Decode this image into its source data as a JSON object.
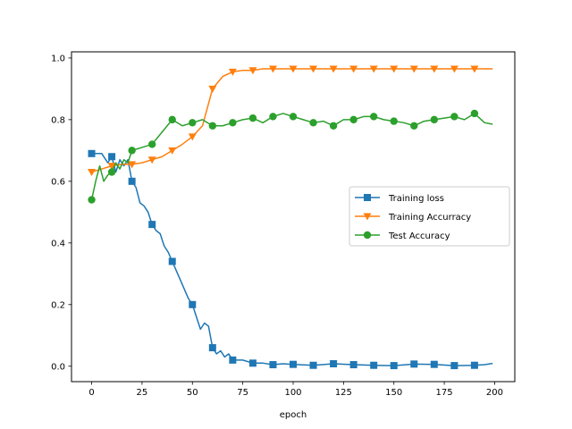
{
  "chart_data": {
    "type": "line",
    "title": "",
    "xlabel": "epoch",
    "ylabel": "",
    "xlim": [
      -10,
      210
    ],
    "ylim": [
      -0.05,
      1.02
    ],
    "x_ticks": [
      0,
      25,
      50,
      75,
      100,
      125,
      150,
      175,
      200
    ],
    "x_tick_labels": [
      "0",
      "25",
      "50",
      "75",
      "100",
      "125",
      "150",
      "175",
      "200"
    ],
    "y_ticks": [
      0.0,
      0.2,
      0.4,
      0.6,
      0.8,
      1.0
    ],
    "y_tick_labels": [
      "0.0",
      "0.2",
      "0.4",
      "0.6",
      "0.8",
      "1.0"
    ],
    "grid": false,
    "legend_position": "center-right",
    "marker_every": 10,
    "series": [
      {
        "name": "Training loss",
        "color": "#1f77b4",
        "marker": "square",
        "x": [
          0,
          5,
          8,
          10,
          12,
          14,
          16,
          18,
          20,
          22,
          24,
          26,
          28,
          30,
          32,
          34,
          36,
          38,
          40,
          42,
          44,
          46,
          48,
          50,
          52,
          54,
          56,
          58,
          60,
          62,
          64,
          66,
          68,
          70,
          75,
          80,
          85,
          90,
          95,
          100,
          110,
          120,
          130,
          140,
          150,
          160,
          170,
          180,
          190,
          195,
          199
        ],
        "values": [
          0.69,
          0.69,
          0.66,
          0.68,
          0.63,
          0.67,
          0.65,
          0.67,
          0.6,
          0.58,
          0.53,
          0.52,
          0.5,
          0.46,
          0.44,
          0.43,
          0.39,
          0.37,
          0.34,
          0.31,
          0.28,
          0.25,
          0.22,
          0.2,
          0.16,
          0.12,
          0.14,
          0.13,
          0.06,
          0.04,
          0.05,
          0.03,
          0.04,
          0.02,
          0.02,
          0.01,
          0.01,
          0.005,
          0.008,
          0.006,
          0.003,
          0.008,
          0.005,
          0.003,
          0.002,
          0.007,
          0.006,
          0.002,
          0.003,
          0.005,
          0.009
        ]
      },
      {
        "name": "Training Accurracy",
        "color": "#ff7f0e",
        "marker": "triangle-down",
        "x": [
          0,
          5,
          10,
          15,
          20,
          25,
          30,
          35,
          40,
          45,
          50,
          55,
          60,
          65,
          70,
          75,
          80,
          85,
          90,
          100,
          110,
          120,
          130,
          140,
          150,
          160,
          170,
          180,
          190,
          199
        ],
        "values": [
          0.63,
          0.64,
          0.65,
          0.655,
          0.655,
          0.66,
          0.67,
          0.68,
          0.7,
          0.72,
          0.745,
          0.78,
          0.9,
          0.94,
          0.955,
          0.96,
          0.96,
          0.965,
          0.965,
          0.965,
          0.965,
          0.965,
          0.965,
          0.965,
          0.965,
          0.965,
          0.965,
          0.965,
          0.965,
          0.965
        ]
      },
      {
        "name": "Test Accuracy",
        "color": "#2ca02c",
        "marker": "circle",
        "x": [
          0,
          2,
          4,
          6,
          8,
          10,
          12,
          14,
          16,
          18,
          20,
          25,
          30,
          35,
          40,
          45,
          50,
          55,
          60,
          65,
          70,
          75,
          80,
          85,
          90,
          95,
          100,
          105,
          110,
          115,
          120,
          125,
          130,
          135,
          140,
          145,
          150,
          155,
          160,
          165,
          170,
          175,
          180,
          185,
          190,
          195,
          199
        ],
        "values": [
          0.54,
          0.6,
          0.65,
          0.6,
          0.62,
          0.63,
          0.66,
          0.64,
          0.67,
          0.66,
          0.7,
          0.71,
          0.72,
          0.76,
          0.8,
          0.78,
          0.79,
          0.8,
          0.78,
          0.78,
          0.79,
          0.8,
          0.805,
          0.79,
          0.81,
          0.82,
          0.81,
          0.8,
          0.79,
          0.795,
          0.78,
          0.8,
          0.8,
          0.81,
          0.81,
          0.8,
          0.795,
          0.79,
          0.78,
          0.795,
          0.8,
          0.805,
          0.81,
          0.8,
          0.82,
          0.79,
          0.785
        ]
      }
    ]
  }
}
